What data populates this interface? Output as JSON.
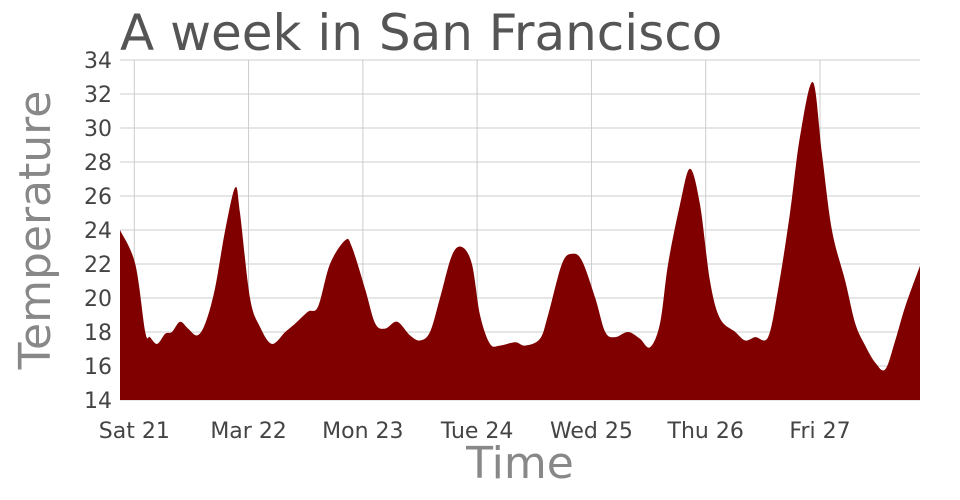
{
  "chart_data": {
    "type": "area",
    "title": "A week in San Francisco",
    "x_label": "Time",
    "y_label": "Temperature",
    "color": "#800000",
    "grid": true,
    "xlim": [
      0,
      168
    ],
    "ylim": [
      14,
      34
    ],
    "xticks": [
      {
        "value": 3,
        "label": "Sat 21"
      },
      {
        "value": 27,
        "label": "Mar 22"
      },
      {
        "value": 51,
        "label": "Mon 23"
      },
      {
        "value": 75,
        "label": "Tue 24"
      },
      {
        "value": 99,
        "label": "Wed 25"
      },
      {
        "value": 123,
        "label": "Thu 26"
      },
      {
        "value": 147,
        "label": "Fri 27"
      }
    ],
    "yticks": [
      14,
      16,
      18,
      20,
      22,
      24,
      26,
      28,
      30,
      32,
      34
    ],
    "x": [
      0,
      3.2,
      5.3,
      6.3,
      7.8,
      9.5,
      10.9,
      12.6,
      14.3,
      16.2,
      17.9,
      19.9,
      22.1,
      24.2,
      25.2,
      27.3,
      29.4,
      31.9,
      34.7,
      36.8,
      39.5,
      41.6,
      44.1,
      47.3,
      48.7,
      51.5,
      53.6,
      55.7,
      58.2,
      60.9,
      63,
      65.1,
      67.2,
      69.7,
      71.8,
      73.9,
      75.6,
      77.7,
      79.8,
      83,
      85.1,
      88.2,
      89.9,
      92.8,
      94.9,
      97,
      99.8,
      101.9,
      104,
      106.7,
      109.2,
      111.3,
      113.4,
      115.1,
      117.6,
      119.7,
      121.8,
      123.9,
      126,
      129.2,
      131.3,
      133.4,
      136.1,
      138.2,
      140.7,
      142.8,
      145.5,
      147.4,
      149.5,
      152.3,
      154.4,
      156.5,
      158.6,
      160.7,
      162.8,
      164.9,
      168
    ],
    "values": [
      24,
      22,
      18,
      17.7,
      17.3,
      17.9,
      18,
      18.6,
      18.2,
      17.8,
      18.5,
      20.5,
      24,
      26.5,
      25,
      20,
      18.3,
      17.3,
      18,
      18.5,
      19.2,
      19.5,
      22,
      23.4,
      23,
      20.5,
      18.5,
      18.2,
      18.6,
      17.8,
      17.5,
      18,
      20,
      22.5,
      23,
      22,
      19,
      17.3,
      17.2,
      17.4,
      17.2,
      17.6,
      19,
      22,
      22.6,
      22.2,
      20,
      18,
      17.7,
      18,
      17.6,
      17.1,
      18.5,
      22,
      25.5,
      27.6,
      25.5,
      21,
      18.8,
      18,
      17.5,
      17.7,
      17.7,
      20.5,
      25,
      29.5,
      32.7,
      28.5,
      24,
      21,
      18.5,
      17.2,
      16.2,
      15.8,
      17.5,
      19.5,
      21.9
    ]
  }
}
